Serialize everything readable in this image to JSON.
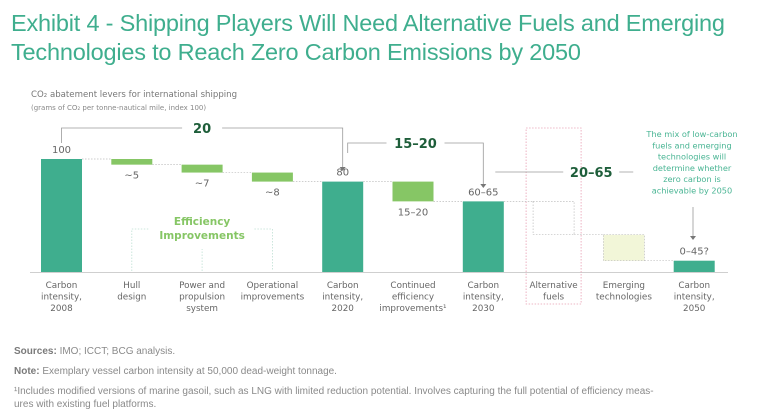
{
  "title": "Exhibit 4 - Shipping Players Will Need Alternative Fuels and Emerging Technologies to Reach Zero Carbon Emissions by 2050",
  "subtitle_line1": "CO₂ abatement levers for international shipping",
  "subtitle_line2": "(grams of CO₂ per tonne-nautical mile, index 100)",
  "colors": {
    "total_bar": "#3fae8e",
    "reduction_bar": "#86c665",
    "emerging_fill": "#f2f6d8",
    "title": "#3fae8e",
    "bracket_label": "#1e5e3a",
    "annotation": "#4ab594",
    "efficiency_label": "#86c665",
    "alt_fuels_border": "#e8a0b4"
  },
  "chart_data": {
    "type": "waterfall",
    "title": "Exhibit 4 - Shipping Players Will Need Alternative Fuels and Emerging Technologies to Reach Zero Carbon Emissions by 2050",
    "ylabel": "grams of CO2 per tonne-nautical mile, index 100",
    "ylim": [
      0,
      100
    ],
    "categories": [
      "Carbon intensity, 2008",
      "Hull design",
      "Power and propulsion system",
      "Operational improvements",
      "Carbon intensity, 2020",
      "Continued efficiency improvements¹",
      "Carbon intensity, 2030",
      "Alternative fuels",
      "Emerging technologies",
      "Carbon intensity, 2050"
    ],
    "bars": [
      {
        "label": [
          "Carbon",
          "intensity,",
          "2008"
        ],
        "kind": "total",
        "start": 0,
        "end": 100,
        "value_label": "100",
        "value_pos": "above"
      },
      {
        "label": [
          "Hull",
          "design"
        ],
        "kind": "reduction",
        "start": 100,
        "end": 95,
        "value_label": "~5",
        "value_pos": "below"
      },
      {
        "label": [
          "Power and",
          "propulsion",
          "system"
        ],
        "kind": "reduction",
        "start": 95,
        "end": 88,
        "value_label": "~7",
        "value_pos": "below"
      },
      {
        "label": [
          "Operational",
          "improvements"
        ],
        "kind": "reduction",
        "start": 88,
        "end": 80,
        "value_label": "~8",
        "value_pos": "below"
      },
      {
        "label": [
          "Carbon",
          "intensity,",
          "2020"
        ],
        "kind": "total",
        "start": 0,
        "end": 80,
        "value_label": "80",
        "value_pos": "above"
      },
      {
        "label": [
          "Continued",
          "efficiency",
          "improvements¹"
        ],
        "kind": "reduction",
        "start": 80,
        "end": 62.5,
        "value_label": "15–20",
        "value_pos": "below"
      },
      {
        "label": [
          "Carbon",
          "intensity,",
          "2030"
        ],
        "kind": "total",
        "start": 0,
        "end": 62.5,
        "value_label": "60–65",
        "value_pos": "above"
      },
      {
        "label": [
          "Alternative",
          "fuels"
        ],
        "kind": "uncertain",
        "start": 62.5,
        "end": 33,
        "value_label": "",
        "value_pos": "none"
      },
      {
        "label": [
          "Emerging",
          "technologies"
        ],
        "kind": "emerging",
        "start": 33,
        "end": 10,
        "value_label": "",
        "value_pos": "none"
      },
      {
        "label": [
          "Carbon",
          "intensity,",
          "2050"
        ],
        "kind": "total",
        "start": 0,
        "end": 10,
        "value_label": "0–45?",
        "value_pos": "above"
      }
    ],
    "brackets": [
      {
        "label": "20",
        "from": 0,
        "to": 4
      },
      {
        "label": "15–20",
        "from": 4,
        "to": 6
      },
      {
        "label": "20–65",
        "from": 6,
        "to": 9
      }
    ],
    "group_label": [
      "Efficiency",
      "Improvements"
    ],
    "annotation": [
      "The mix of low-carbon",
      "fuels and emerging",
      "technologies will",
      "determine whether",
      "zero carbon is",
      "achievable by 2050"
    ]
  },
  "footnotes": {
    "sources_label": "Sources:",
    "sources_text": " IMO; ICCT; BCG analysis.",
    "note_label": "Note:",
    "note_text": " Exemplary vessel carbon intensity at 50,000 dead-weight tonnage.",
    "footnote1_line1": "¹Includes modified versions of marine gasoil, such as LNG with limited reduction potential. Involves capturing the full potential of efficiency meas-",
    "footnote1_line2": "ures with existing fuel platforms."
  }
}
